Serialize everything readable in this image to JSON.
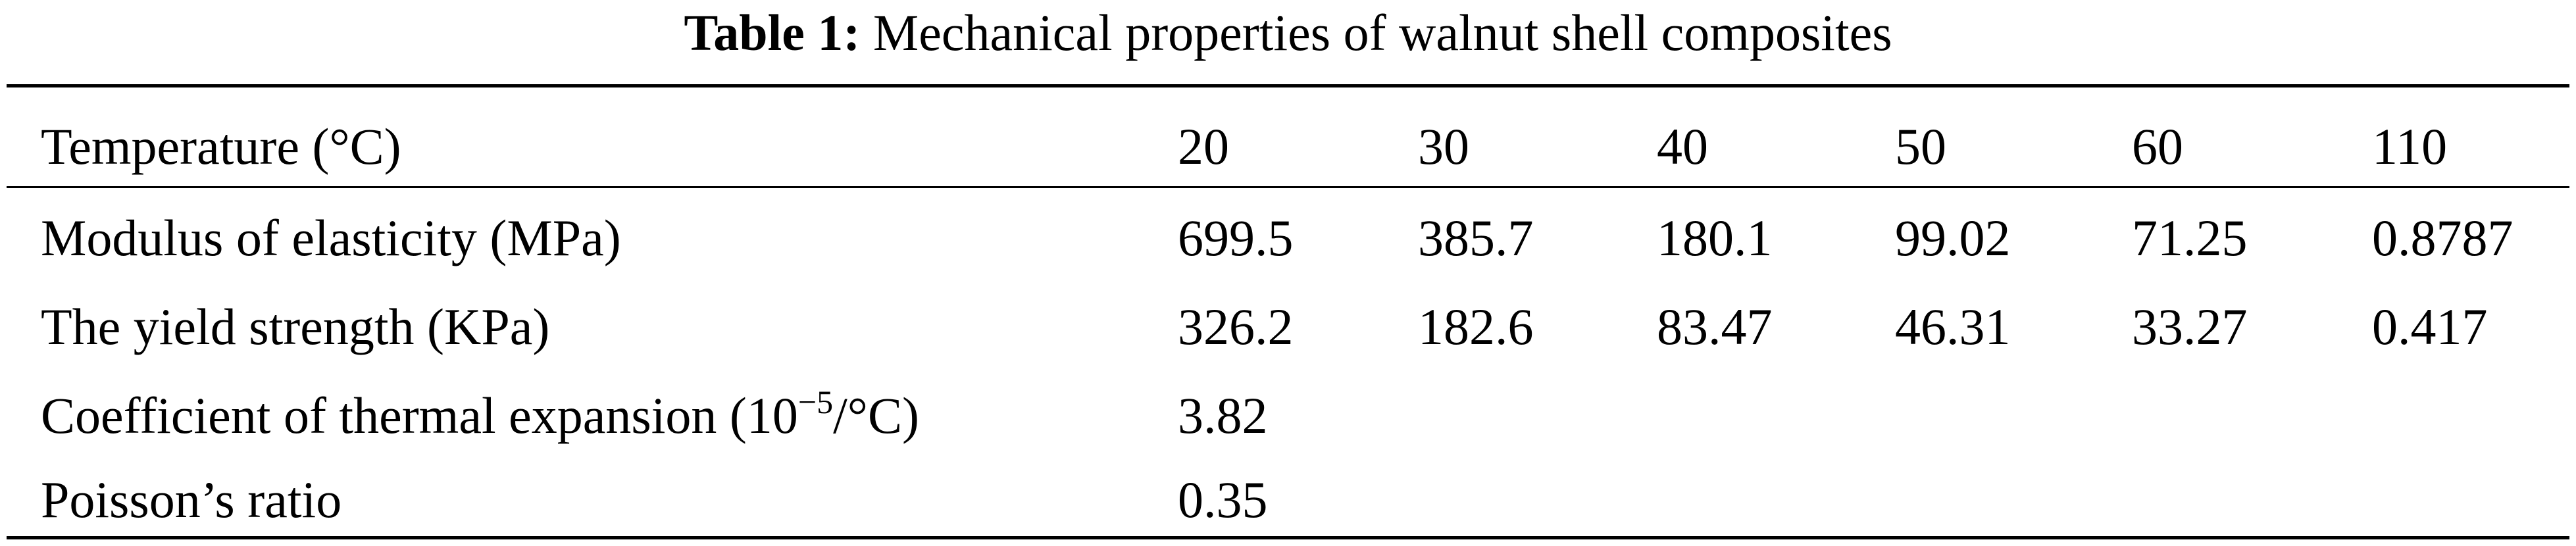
{
  "caption": {
    "label": "Table 1:",
    "title": "Mechanical properties of walnut shell composites"
  },
  "table": {
    "header": {
      "label": "Temperature (°C)",
      "values": [
        "20",
        "30",
        "40",
        "50",
        "60",
        "110"
      ]
    },
    "rows": [
      {
        "label": "Modulus of elasticity (MPa)",
        "values": [
          "699.5",
          "385.7",
          "180.1",
          "99.02",
          "71.25",
          "0.8787"
        ]
      },
      {
        "label": "The yield strength (KPa)",
        "values": [
          "326.2",
          "182.6",
          "83.47",
          "46.31",
          "33.27",
          "0.417"
        ]
      },
      {
        "label_prefix": "Coefficient of thermal expansion (10",
        "label_exponent": "−5",
        "label_suffix": "/°C)",
        "values": [
          "3.82"
        ]
      },
      {
        "label": "Poisson’s ratio",
        "values": [
          "0.35"
        ]
      }
    ]
  }
}
